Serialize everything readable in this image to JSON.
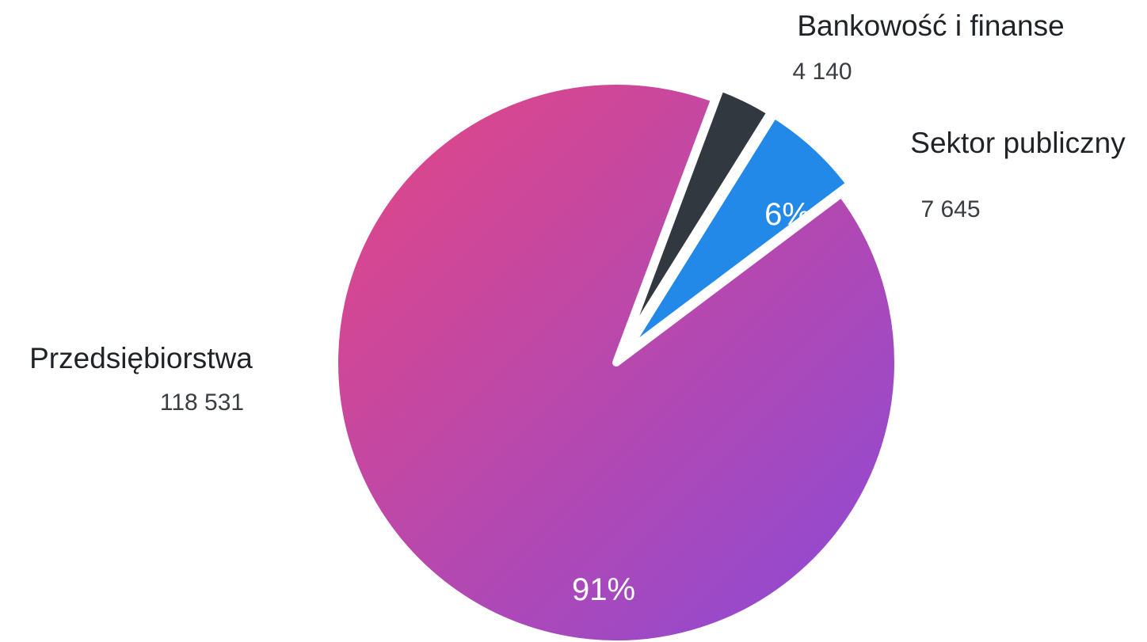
{
  "chart_data": {
    "type": "pie",
    "title": "",
    "slices": [
      {
        "label": "Przedsiębiorstwa",
        "value": 118531,
        "display_value": "118 531",
        "percent_label": "91%",
        "color": "gradient-pink-purple"
      },
      {
        "label": "Bankowość i finanse",
        "value": 4140,
        "display_value": "4 140",
        "percent_label": "",
        "color": "#323840"
      },
      {
        "label": "Sektor publiczny",
        "value": 7645,
        "display_value": "7 645",
        "percent_label": "6%",
        "color": "#2389e8"
      }
    ],
    "colors": {
      "gradient_start": "#e64682",
      "gradient_end": "#8a4ad8",
      "banking": "#323840",
      "public": "#2389e8",
      "background": "#ffffff"
    },
    "legend": "none"
  }
}
